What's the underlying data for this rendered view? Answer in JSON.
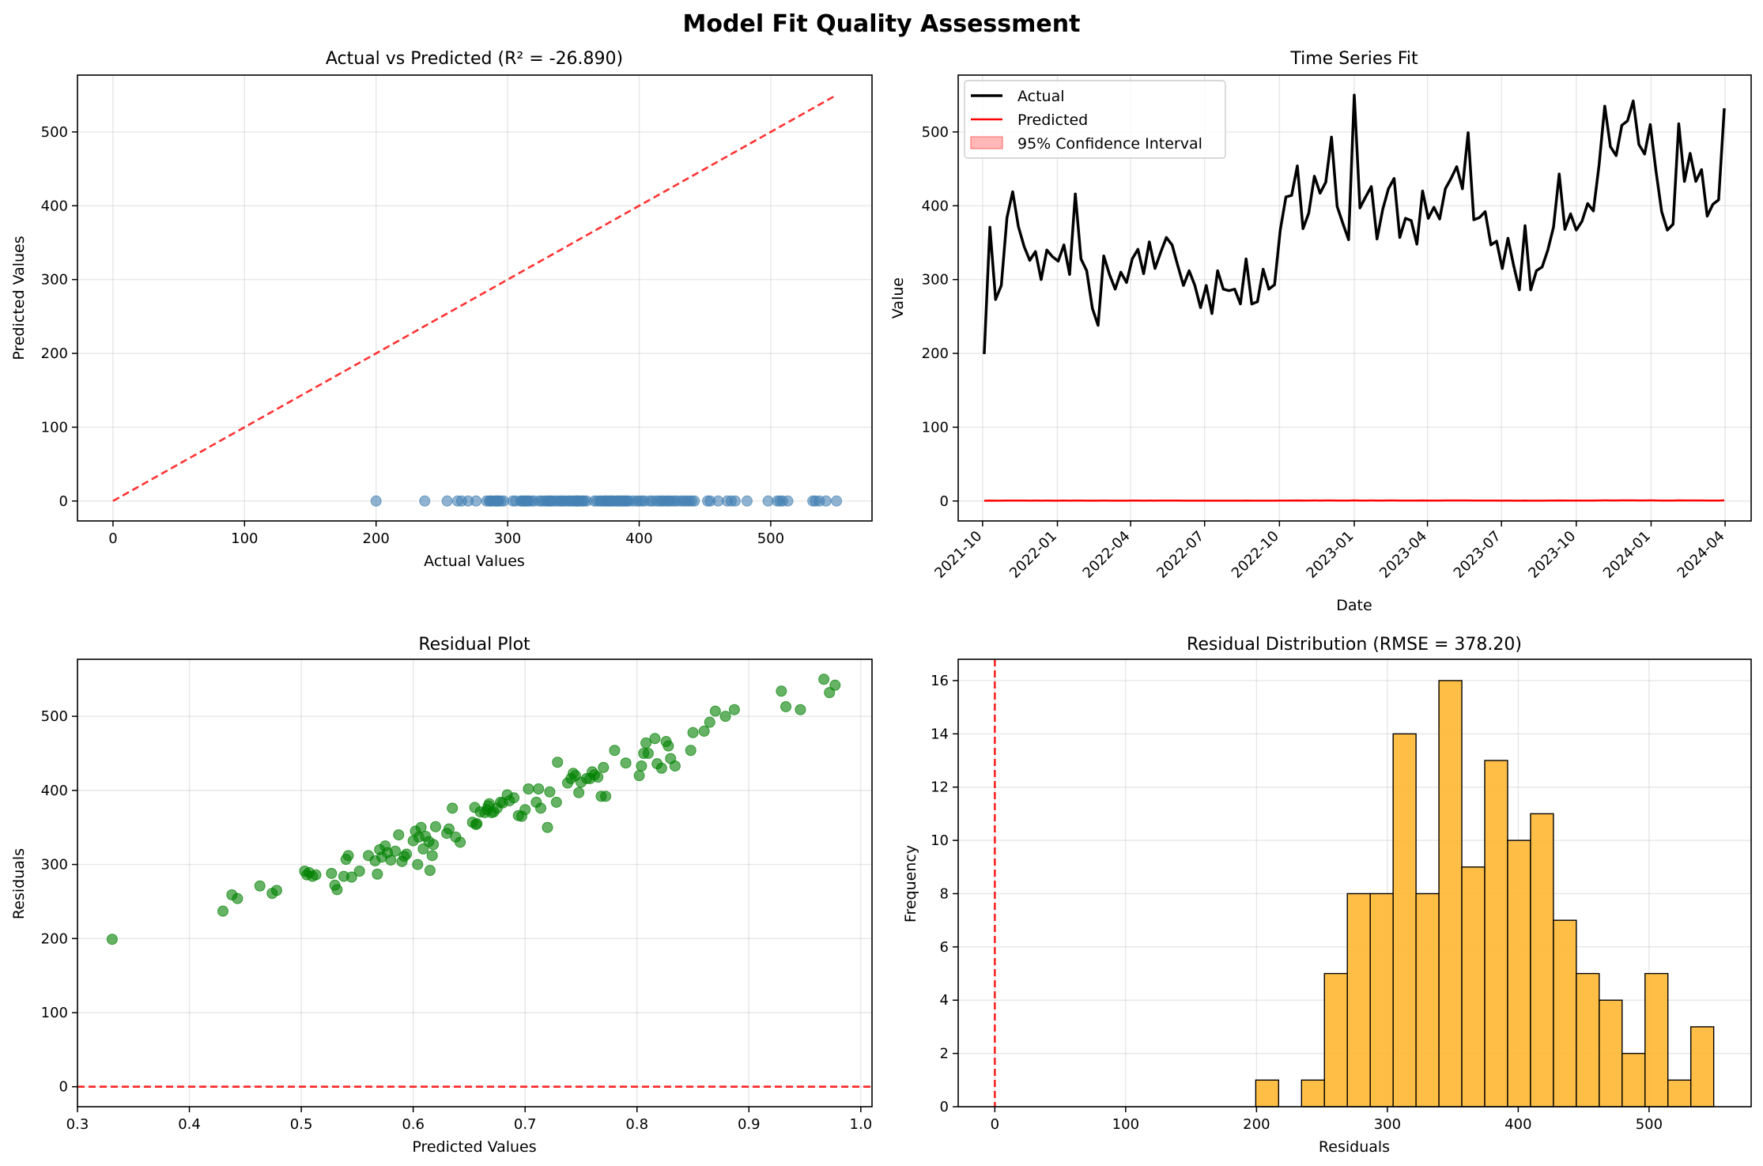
{
  "figure": {
    "title": "Model Fit Quality Assessment"
  },
  "colors": {
    "scatter_actual_vs_predicted": "#4682b4",
    "identity_line": "#ff0000",
    "actual_line": "#000000",
    "predicted_line": "#ff0000",
    "confidence_band": "#ff9999",
    "residual_points": "#008000",
    "histogram_fill": "#ffb732",
    "histogram_edge": "#000000"
  },
  "chart_data": [
    {
      "id": "avp",
      "type": "scatter",
      "title": "Actual vs Predicted (R² = -26.890)",
      "xlabel": "Actual Values",
      "ylabel": "Predicted Values",
      "xlim": [
        -27,
        577
      ],
      "ylim": [
        -27,
        577
      ],
      "xticks": [
        0,
        100,
        200,
        300,
        400,
        500
      ],
      "yticks": [
        0,
        100,
        200,
        300,
        400,
        500
      ],
      "grid": true,
      "reference_line": {
        "from": [
          0,
          0
        ],
        "to": [
          550,
          550
        ],
        "style": "dashed"
      },
      "y_value": 0,
      "x": [
        200,
        237,
        254,
        262,
        265,
        270,
        276,
        284,
        286,
        287,
        288,
        290,
        291,
        292,
        293,
        293,
        295,
        297,
        304,
        306,
        310,
        311,
        312,
        313,
        314,
        315,
        316,
        318,
        320,
        324,
        326,
        328,
        330,
        331,
        332,
        333,
        334,
        336,
        338,
        340,
        341,
        342,
        344,
        346,
        347,
        349,
        350,
        352,
        352,
        353,
        354,
        354,
        356,
        357,
        358,
        360,
        366,
        368,
        370,
        371,
        373,
        374,
        375,
        376,
        377,
        378,
        379,
        380,
        381,
        383,
        384,
        385,
        386,
        387,
        388,
        389,
        390,
        391,
        392,
        395,
        398,
        400,
        402,
        404,
        408,
        410,
        413,
        415,
        417,
        418,
        420,
        422,
        423,
        425,
        427,
        429,
        432,
        434,
        436,
        438,
        440,
        442,
        452,
        454,
        460,
        467,
        470,
        473,
        482,
        498,
        505,
        507,
        509,
        513,
        532,
        534,
        537,
        542,
        550
      ]
    },
    {
      "id": "ts",
      "type": "line",
      "title": "Time Series Fit",
      "xlabel": "Date",
      "ylabel": "Value",
      "ylim": [
        -27,
        577
      ],
      "yticks": [
        0,
        100,
        200,
        300,
        400,
        500
      ],
      "xticks": [
        "2021-10",
        "2022-01",
        "2022-04",
        "2022-07",
        "2022-10",
        "2023-01",
        "2023-04",
        "2023-07",
        "2023-10",
        "2024-01",
        "2024-04"
      ],
      "x_start": "2021-10-03",
      "x_step_days": 7,
      "x_range": [
        "2021-09-01",
        "2024-05-03"
      ],
      "legend_position": "upper left",
      "series": [
        {
          "name": "Actual",
          "values": [
            199,
            371,
            273,
            292,
            384,
            419,
            372,
            345,
            326,
            338,
            300,
            340,
            331,
            325,
            347,
            307,
            416,
            328,
            312,
            261,
            238,
            332,
            307,
            287,
            310,
            296,
            328,
            341,
            308,
            351,
            315,
            337,
            357,
            347,
            319,
            292,
            312,
            292,
            262,
            292,
            254,
            312,
            287,
            285,
            287,
            267,
            328,
            267,
            270,
            314,
            287,
            293,
            367,
            412,
            414,
            454,
            369,
            390,
            440,
            417,
            432,
            493,
            399,
            376,
            354,
            550,
            397,
            412,
            426,
            355,
            395,
            423,
            437,
            357,
            383,
            380,
            348,
            420,
            383,
            398,
            382,
            423,
            437,
            453,
            423,
            499,
            381,
            384,
            392,
            347,
            352,
            315,
            356,
            319,
            286,
            373,
            286,
            312,
            317,
            340,
            371,
            443,
            368,
            389,
            367,
            379,
            403,
            393,
            455,
            535,
            480,
            468,
            509,
            515,
            542,
            483,
            470,
            510,
            447,
            392,
            367,
            375,
            511,
            433,
            471,
            433,
            449,
            386,
            402,
            408,
            532
          ]
        },
        {
          "name": "Predicted",
          "values": [
            0.33,
            0.55,
            0.43,
            0.46,
            0.6,
            0.63,
            0.58,
            0.54,
            0.5,
            0.51,
            0.45,
            0.51,
            0.5,
            0.5,
            0.53,
            0.47,
            0.64,
            0.51,
            0.48,
            0.42,
            0.4,
            0.52,
            0.49,
            0.46,
            0.49,
            0.47,
            0.52,
            0.54,
            0.49,
            0.55,
            0.49,
            0.53,
            0.56,
            0.55,
            0.51,
            0.47,
            0.5,
            0.47,
            0.43,
            0.47,
            0.42,
            0.5,
            0.46,
            0.45,
            0.46,
            0.43,
            0.52,
            0.43,
            0.43,
            0.5,
            0.46,
            0.47,
            0.57,
            0.64,
            0.64,
            0.7,
            0.57,
            0.61,
            0.68,
            0.64,
            0.67,
            0.75,
            0.62,
            0.58,
            0.55,
            0.85,
            0.61,
            0.64,
            0.66,
            0.55,
            0.61,
            0.66,
            0.68,
            0.55,
            0.59,
            0.59,
            0.54,
            0.65,
            0.59,
            0.62,
            0.59,
            0.65,
            0.68,
            0.7,
            0.65,
            0.77,
            0.59,
            0.59,
            0.61,
            0.54,
            0.54,
            0.49,
            0.55,
            0.49,
            0.44,
            0.58,
            0.44,
            0.48,
            0.49,
            0.53,
            0.57,
            0.69,
            0.57,
            0.6,
            0.57,
            0.58,
            0.62,
            0.61,
            0.7,
            0.83,
            0.74,
            0.72,
            0.79,
            0.8,
            0.84,
            0.75,
            0.73,
            0.79,
            0.69,
            0.61,
            0.57,
            0.58,
            0.79,
            0.67,
            0.73,
            0.67,
            0.69,
            0.6,
            0.62,
            0.63,
            0.82
          ]
        },
        {
          "name": "95% Confidence Interval",
          "type": "band",
          "half_width": 0.5
        }
      ]
    },
    {
      "id": "res",
      "type": "scatter",
      "title": "Residual Plot",
      "xlabel": "Predicted Values",
      "ylabel": "Residuals",
      "xlim": [
        0.3,
        1.01
      ],
      "ylim": [
        -27,
        577
      ],
      "xticks": [
        0.3,
        0.4,
        0.5,
        0.6,
        0.7,
        0.8,
        0.9,
        1.0
      ],
      "yticks": [
        0,
        100,
        200,
        300,
        400,
        500
      ],
      "grid": true,
      "reference_line": {
        "y": 0,
        "style": "dashed"
      },
      "points": [
        [
          0.331,
          199
        ],
        [
          0.43,
          237
        ],
        [
          0.438,
          259
        ],
        [
          0.443,
          254
        ],
        [
          0.463,
          271
        ],
        [
          0.474,
          261
        ],
        [
          0.478,
          265
        ],
        [
          0.503,
          291
        ],
        [
          0.505,
          286
        ],
        [
          0.507,
          289
        ],
        [
          0.51,
          284
        ],
        [
          0.513,
          286
        ],
        [
          0.527,
          288
        ],
        [
          0.53,
          272
        ],
        [
          0.532,
          266
        ],
        [
          0.538,
          284
        ],
        [
          0.54,
          307
        ],
        [
          0.542,
          312
        ],
        [
          0.545,
          283
        ],
        [
          0.552,
          291
        ],
        [
          0.56,
          312
        ],
        [
          0.566,
          305
        ],
        [
          0.568,
          287
        ],
        [
          0.57,
          320
        ],
        [
          0.572,
          310
        ],
        [
          0.575,
          325
        ],
        [
          0.577,
          316
        ],
        [
          0.58,
          306
        ],
        [
          0.584,
          318
        ],
        [
          0.587,
          340
        ],
        [
          0.59,
          304
        ],
        [
          0.592,
          311
        ],
        [
          0.594,
          314
        ],
        [
          0.6,
          332
        ],
        [
          0.602,
          345
        ],
        [
          0.604,
          300
        ],
        [
          0.605,
          337
        ],
        [
          0.607,
          350
        ],
        [
          0.609,
          321
        ],
        [
          0.611,
          338
        ],
        [
          0.614,
          331
        ],
        [
          0.615,
          292
        ],
        [
          0.617,
          312
        ],
        [
          0.618,
          327
        ],
        [
          0.62,
          351
        ],
        [
          0.63,
          342
        ],
        [
          0.632,
          348
        ],
        [
          0.635,
          376
        ],
        [
          0.638,
          337
        ],
        [
          0.642,
          330
        ],
        [
          0.653,
          357
        ],
        [
          0.655,
          377
        ],
        [
          0.656,
          354
        ],
        [
          0.657,
          355
        ],
        [
          0.66,
          371
        ],
        [
          0.664,
          370
        ],
        [
          0.666,
          374
        ],
        [
          0.667,
          379
        ],
        [
          0.668,
          382
        ],
        [
          0.67,
          370
        ],
        [
          0.672,
          371
        ],
        [
          0.675,
          376
        ],
        [
          0.678,
          384
        ],
        [
          0.68,
          383
        ],
        [
          0.684,
          394
        ],
        [
          0.686,
          386
        ],
        [
          0.69,
          390
        ],
        [
          0.694,
          366
        ],
        [
          0.697,
          365
        ],
        [
          0.7,
          374
        ],
        [
          0.703,
          402
        ],
        [
          0.71,
          384
        ],
        [
          0.712,
          402
        ],
        [
          0.714,
          376
        ],
        [
          0.72,
          350
        ],
        [
          0.722,
          398
        ],
        [
          0.728,
          384
        ],
        [
          0.729,
          438
        ],
        [
          0.738,
          410
        ],
        [
          0.741,
          416
        ],
        [
          0.743,
          423
        ],
        [
          0.745,
          420
        ],
        [
          0.748,
          397
        ],
        [
          0.75,
          411
        ],
        [
          0.755,
          416
        ],
        [
          0.758,
          416
        ],
        [
          0.76,
          425
        ],
        [
          0.762,
          421
        ],
        [
          0.765,
          418
        ],
        [
          0.768,
          392
        ],
        [
          0.77,
          431
        ],
        [
          0.772,
          392
        ],
        [
          0.78,
          454
        ],
        [
          0.79,
          437
        ],
        [
          0.802,
          420
        ],
        [
          0.804,
          433
        ],
        [
          0.806,
          450
        ],
        [
          0.808,
          464
        ],
        [
          0.81,
          450
        ],
        [
          0.816,
          470
        ],
        [
          0.818,
          436
        ],
        [
          0.822,
          430
        ],
        [
          0.826,
          466
        ],
        [
          0.828,
          460
        ],
        [
          0.83,
          443
        ],
        [
          0.834,
          433
        ],
        [
          0.848,
          454
        ],
        [
          0.85,
          478
        ],
        [
          0.86,
          480
        ],
        [
          0.865,
          492
        ],
        [
          0.87,
          507
        ],
        [
          0.879,
          500
        ],
        [
          0.887,
          509
        ],
        [
          0.929,
          534
        ],
        [
          0.933,
          513
        ],
        [
          0.946,
          509
        ],
        [
          0.967,
          550
        ],
        [
          0.972,
          532
        ],
        [
          0.977,
          542
        ]
      ]
    },
    {
      "id": "hist",
      "type": "bar",
      "title": "Residual Distribution (RMSE = 378.20)",
      "xlabel": "Residuals",
      "ylabel": "Frequency",
      "xlim": [
        -28,
        578
      ],
      "ylim": [
        0,
        16.8
      ],
      "xticks": [
        0,
        100,
        200,
        300,
        400,
        500
      ],
      "yticks": [
        0,
        2,
        4,
        6,
        8,
        10,
        12,
        14,
        16
      ],
      "grid": true,
      "reference_line": {
        "x": 0,
        "style": "dashed"
      },
      "bin_start": 199.4,
      "bin_width": 17.5,
      "counts": [
        1,
        0,
        1,
        5,
        8,
        8,
        14,
        8,
        16,
        9,
        13,
        10,
        11,
        7,
        5,
        4,
        2,
        5,
        1,
        3
      ]
    }
  ]
}
